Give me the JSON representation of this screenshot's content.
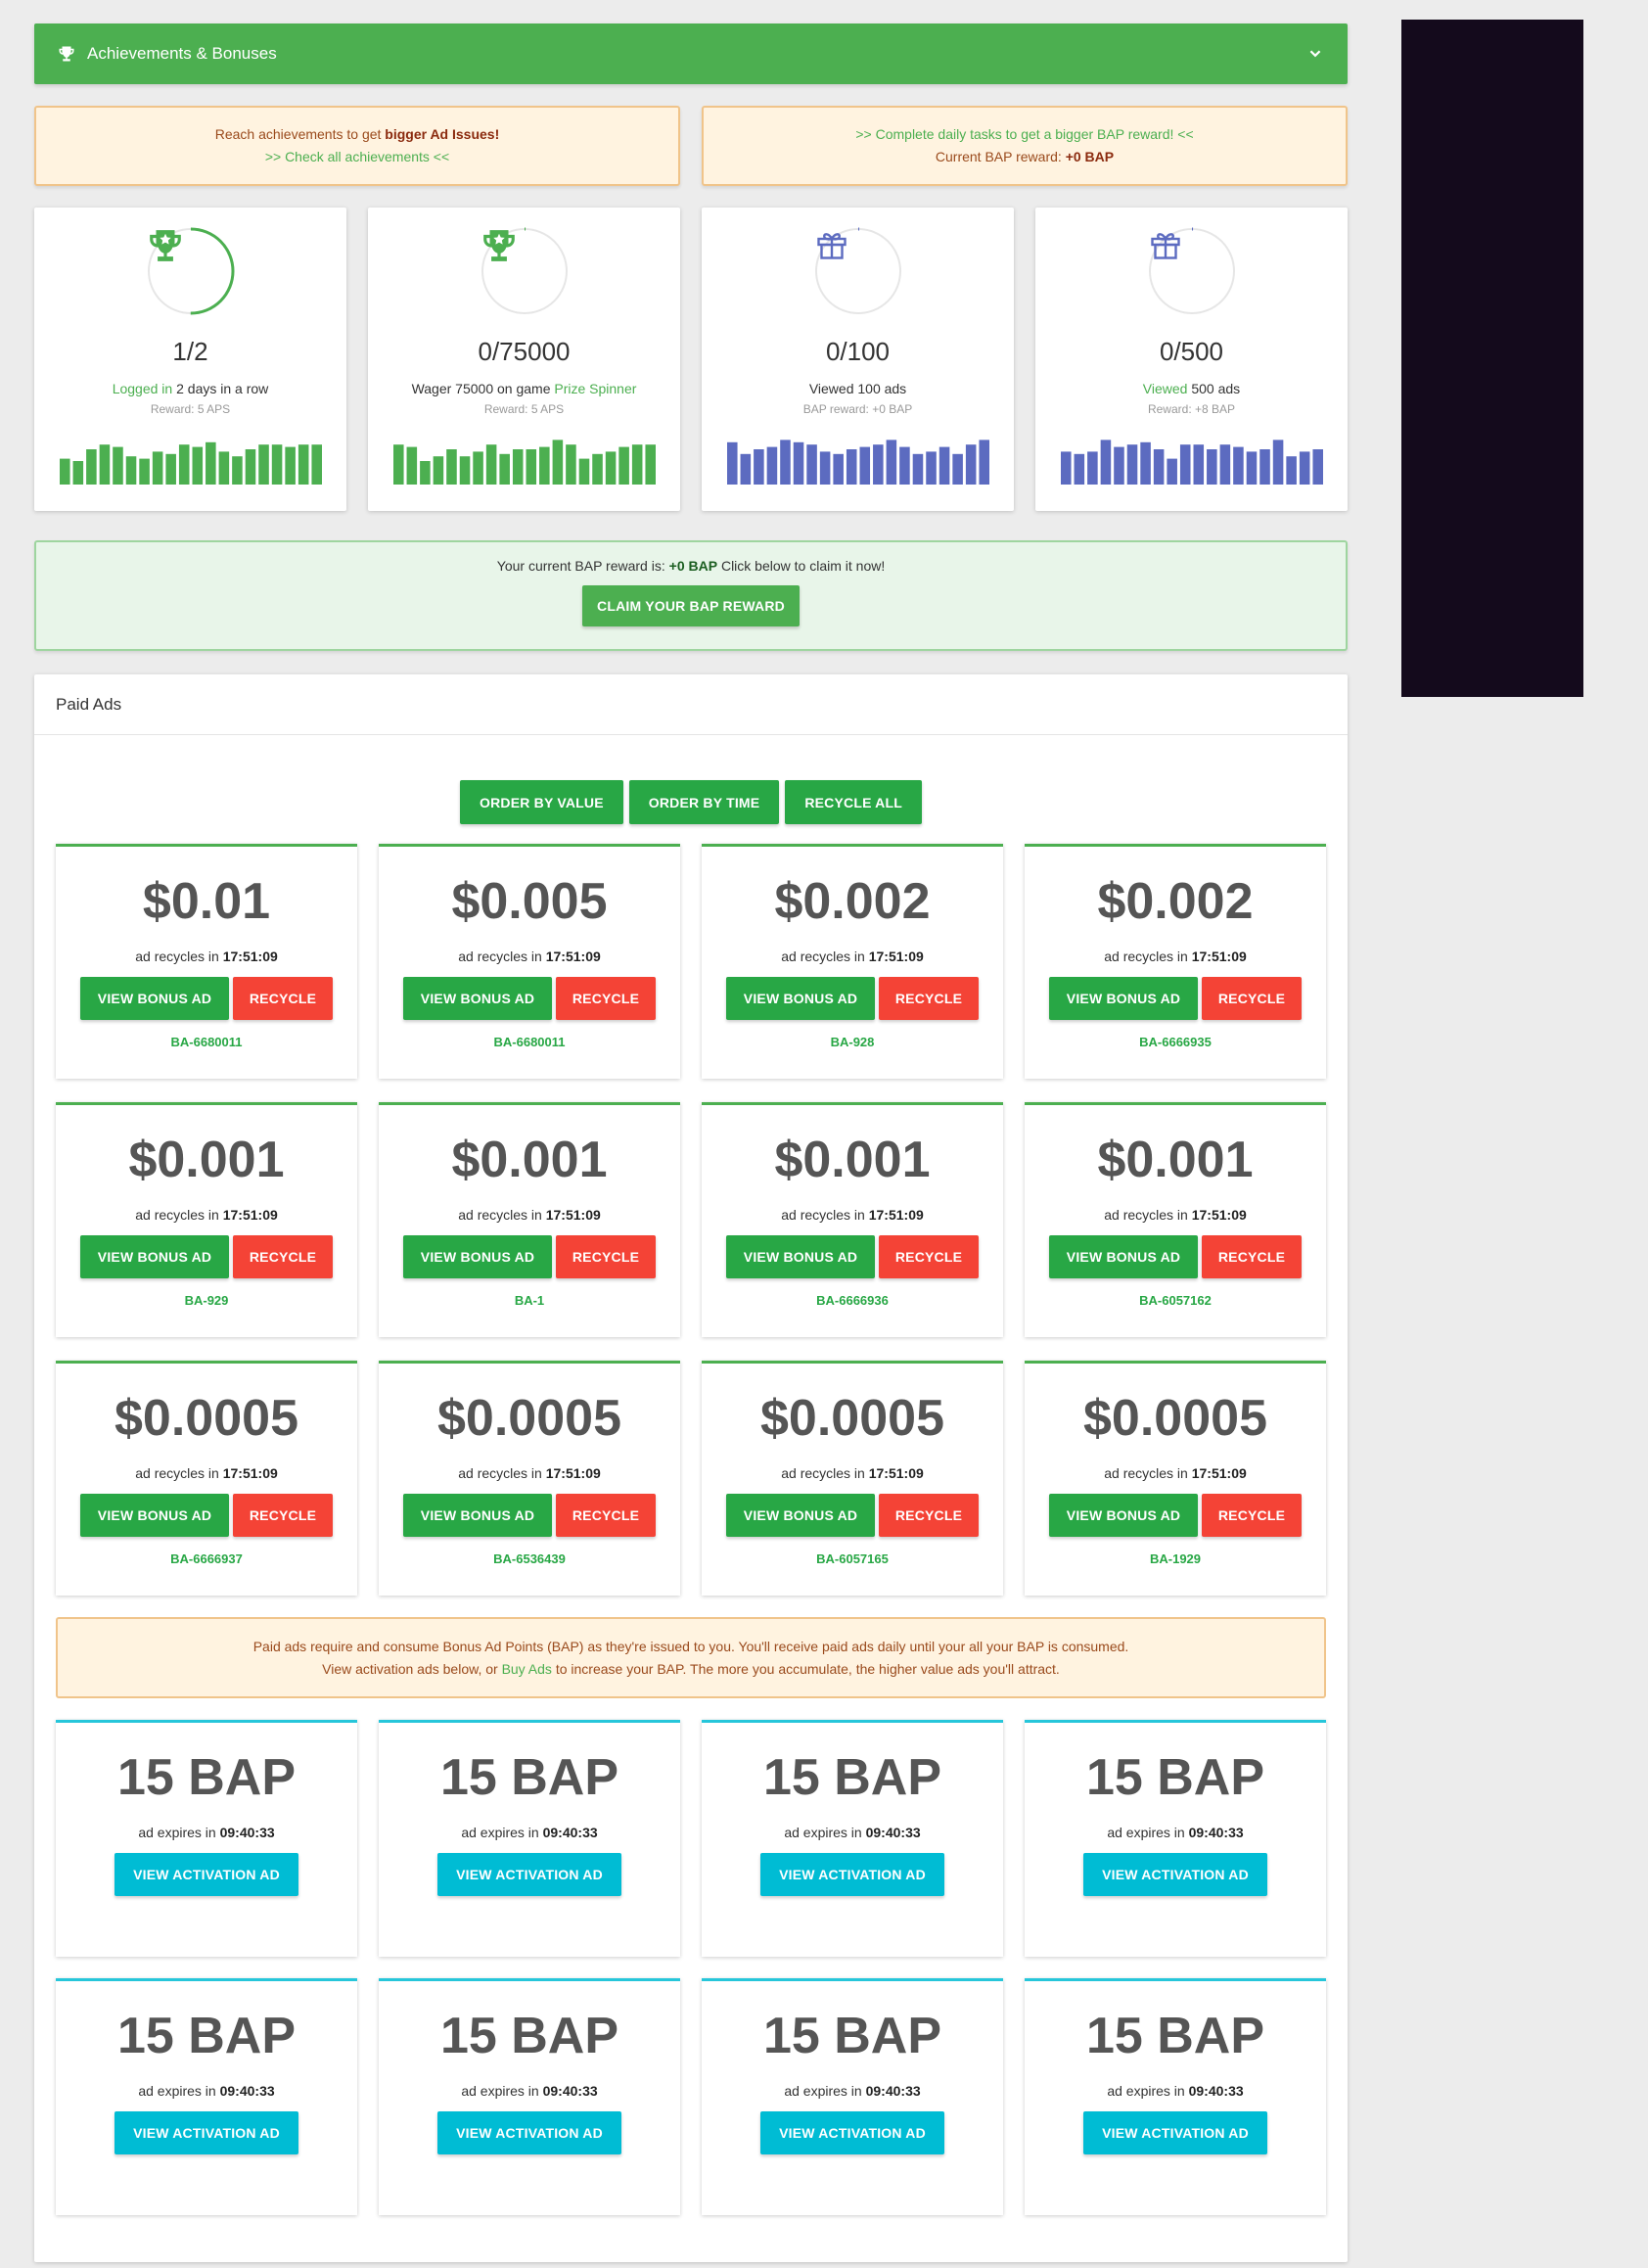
{
  "achievements_bar": {
    "title": "Achievements & Bonuses"
  },
  "notices": {
    "left_line1_prefix": "Reach achievements to get ",
    "left_line1_bold": "bigger Ad Issues!",
    "left_link": ">> Check all achievements <<",
    "right_link": ">> Complete daily tasks to get a bigger BAP reward! <<",
    "right_line2_prefix": "Current BAP reward: ",
    "right_line2_bold": "+0 BAP"
  },
  "stats": [
    {
      "count": "1/2",
      "desc_pre": "",
      "desc_green": "Logged in",
      "desc_post": " 2 days in a row",
      "reward": "Reward: 5 APS",
      "icon": "trophy-icon",
      "progress": 0.5,
      "color": "#4caf50",
      "bars": [
        0.55,
        0.5,
        0.75,
        0.85,
        0.8,
        0.6,
        0.55,
        0.7,
        0.65,
        0.85,
        0.8,
        0.9,
        0.7,
        0.6,
        0.75,
        0.85,
        0.85,
        0.8,
        0.85,
        0.85
      ]
    },
    {
      "count": "0/75000",
      "desc_pre": "Wager 75000 on game ",
      "desc_green": "Prize Spinner",
      "desc_post": "",
      "reward": "Reward: 5 APS",
      "icon": "trophy-icon",
      "progress": 0.0,
      "color": "#4caf50",
      "bars": [
        0.85,
        0.8,
        0.5,
        0.6,
        0.75,
        0.6,
        0.7,
        0.85,
        0.65,
        0.75,
        0.75,
        0.8,
        0.95,
        0.85,
        0.55,
        0.65,
        0.7,
        0.8,
        0.85,
        0.85
      ]
    },
    {
      "count": "0/100",
      "desc_pre": "Viewed 100 ads",
      "desc_green": "",
      "desc_post": "",
      "reward": "BAP reward: +0 BAP",
      "icon": "gift-icon",
      "progress": 0.0,
      "color": "#5c6bc0",
      "bars": [
        0.9,
        0.65,
        0.75,
        0.8,
        0.95,
        0.9,
        0.85,
        0.7,
        0.65,
        0.75,
        0.8,
        0.85,
        0.95,
        0.8,
        0.65,
        0.7,
        0.8,
        0.65,
        0.85,
        0.95
      ]
    },
    {
      "count": "0/500",
      "desc_pre": "",
      "desc_green": "Viewed",
      "desc_post": " 500 ads",
      "reward": "Reward: +8 BAP",
      "icon": "gift-icon",
      "progress": 0.0,
      "color": "#5c6bc0",
      "bars": [
        0.7,
        0.65,
        0.7,
        0.95,
        0.8,
        0.85,
        0.9,
        0.75,
        0.55,
        0.85,
        0.85,
        0.75,
        0.85,
        0.8,
        0.7,
        0.75,
        0.95,
        0.6,
        0.7,
        0.75
      ]
    }
  ],
  "claim": {
    "text_prefix": "Your current BAP reward is: ",
    "text_bold": "+0 BAP",
    "text_suffix": " Click below to claim it now!",
    "button": "CLAIM YOUR BAP REWARD"
  },
  "paid_ads": {
    "header": "Paid Ads",
    "order_value": "ORDER BY VALUE",
    "order_time": "ORDER BY TIME",
    "recycle_all": "RECYCLE ALL",
    "recycle_prefix": "ad recycles in ",
    "view_label": "VIEW BONUS AD",
    "recycle_label": "RECYCLE",
    "ads": [
      {
        "value": "$0.01",
        "time": "17:51:09",
        "code": "BA-6680011"
      },
      {
        "value": "$0.005",
        "time": "17:51:09",
        "code": "BA-6680011"
      },
      {
        "value": "$0.002",
        "time": "17:51:09",
        "code": "BA-928"
      },
      {
        "value": "$0.002",
        "time": "17:51:09",
        "code": "BA-6666935"
      },
      {
        "value": "$0.001",
        "time": "17:51:09",
        "code": "BA-929"
      },
      {
        "value": "$0.001",
        "time": "17:51:09",
        "code": "BA-1"
      },
      {
        "value": "$0.001",
        "time": "17:51:09",
        "code": "BA-6666936"
      },
      {
        "value": "$0.001",
        "time": "17:51:09",
        "code": "BA-6057162"
      },
      {
        "value": "$0.0005",
        "time": "17:51:09",
        "code": "BA-6666937"
      },
      {
        "value": "$0.0005",
        "time": "17:51:09",
        "code": "BA-6536439"
      },
      {
        "value": "$0.0005",
        "time": "17:51:09",
        "code": "BA-6057165"
      },
      {
        "value": "$0.0005",
        "time": "17:51:09",
        "code": "BA-1929"
      }
    ]
  },
  "warning": {
    "line1": "Paid ads require and consume Bonus Ad Points (BAP) as they're issued to you. You'll receive paid ads daily until your all your BAP is consumed.",
    "line2_prefix": "View activation ads below, or ",
    "line2_link": "Buy Ads",
    "line2_suffix": " to increase your BAP. The more you accumulate, the higher value ads you'll attract."
  },
  "activation_ads": {
    "expires_prefix": "ad expires in ",
    "button": "VIEW ACTIVATION AD",
    "ads": [
      {
        "value": "15 BAP",
        "time": "09:40:33"
      },
      {
        "value": "15 BAP",
        "time": "09:40:33"
      },
      {
        "value": "15 BAP",
        "time": "09:40:33"
      },
      {
        "value": "15 BAP",
        "time": "09:40:33"
      },
      {
        "value": "15 BAP",
        "time": "09:40:33"
      },
      {
        "value": "15 BAP",
        "time": "09:40:33"
      },
      {
        "value": "15 BAP",
        "time": "09:40:33"
      },
      {
        "value": "15 BAP",
        "time": "09:40:33"
      }
    ]
  },
  "colors": {
    "green": "#4caf50",
    "red": "#f44336",
    "cyan": "#00bcd4",
    "indigo": "#5c6bc0"
  }
}
